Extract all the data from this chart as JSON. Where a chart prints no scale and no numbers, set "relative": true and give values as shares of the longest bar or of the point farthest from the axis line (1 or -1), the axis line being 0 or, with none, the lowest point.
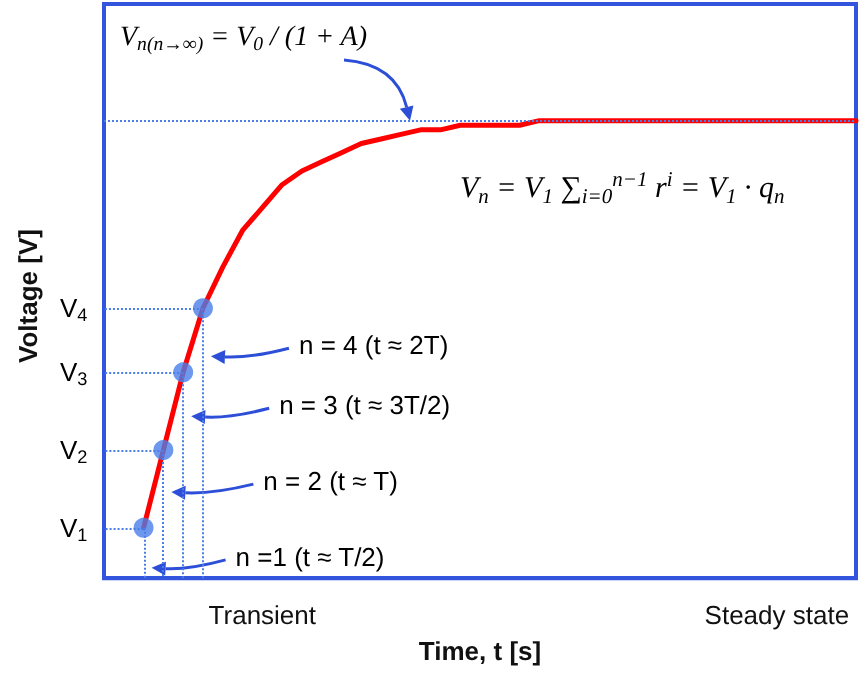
{
  "chart_data": {
    "type": "line",
    "relative": true,
    "xlabel": "Time, t [s]",
    "ylabel": "Voltage [V]",
    "categories": [
      null,
      null,
      null,
      null,
      null,
      null,
      null,
      null,
      "Transient",
      null,
      null,
      null,
      null,
      null,
      null,
      null,
      null,
      null,
      null,
      null,
      null,
      null,
      null,
      null,
      null,
      null,
      null,
      null,
      null,
      null,
      null,
      null,
      null,
      null,
      "Steady state",
      null,
      null,
      null,
      null
    ],
    "series": [
      {
        "color": "#ff0000",
        "marker": "none",
        "values": [
          null,
          null,
          0.11,
          0.28,
          0.45,
          0.59,
          0.68,
          0.76,
          0.81,
          0.86,
          0.89,
          0.91,
          0.93,
          0.95,
          0.96,
          0.97,
          0.98,
          0.98,
          0.99,
          0.99,
          0.99,
          0.99,
          1,
          1,
          1,
          1,
          1,
          1,
          1,
          1,
          1,
          1,
          1,
          1,
          1,
          1,
          1,
          1,
          1
        ]
      },
      {
        "type": "scatter",
        "color": "#4a7ee8",
        "marker": "circle",
        "values": [
          null,
          null,
          0.11,
          0.28,
          0.45,
          0.59,
          null,
          null,
          null,
          null,
          null,
          null,
          null,
          null,
          null,
          null,
          null,
          null,
          null,
          null,
          null,
          null,
          null,
          null,
          null,
          null,
          null,
          null,
          null,
          null,
          null,
          null,
          null,
          null,
          null,
          null,
          null,
          null,
          null
        ]
      }
    ],
    "ref_lines": [
      {
        "axis": "y",
        "value": 1,
        "color": "#4a7ee8",
        "line_style": "dotted"
      }
    ],
    "annotations": [
      {
        "text": "V$_{n(n→∞)}$ = V$_{0}$ / (1 + A)",
        "y": 1
      },
      "V$_{n}$ = V$_{1}$ ∑$_{i=0}$$^{n−1}$ r$^{i}$ = V$_{1}$ · q$_{n}$",
      "n = 4 (t ≈ 2T)",
      "n = 3 (t ≈ 3T/2)",
      "n = 2 (t ≈ T)",
      "n =1 (t ≈ T/2)",
      "V$_{1}$",
      "V$_{2}$",
      "V$_{3}$",
      "V$_{4}$"
    ],
    "grid": false
  }
}
